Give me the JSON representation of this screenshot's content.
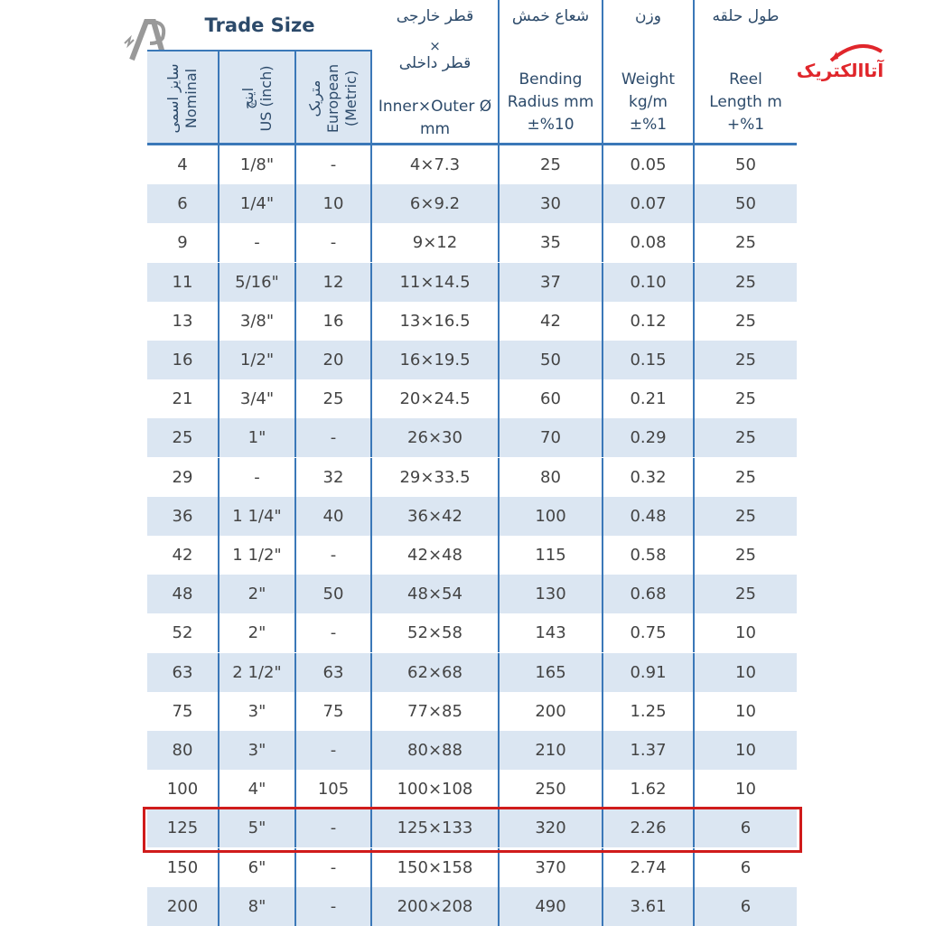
{
  "header": {
    "trade_size": "Trade Size",
    "nominal": {
      "fa": "سایز اسمی",
      "en": "Nominal"
    },
    "us": {
      "fa": "اینچ",
      "en": "US (inch)"
    },
    "european": {
      "fa": "متریک",
      "en": "European",
      "en2": "(Metric)"
    },
    "diameter": {
      "fa1": "قطر خارجی",
      "x": "×",
      "fa2": "قطر داخلی",
      "en": "Inner×Outer Ø",
      "unit": "mm"
    },
    "bending": {
      "fa": "شعاع خمش",
      "en": "Bending",
      "en2": "Radius mm",
      "tol": "±%10"
    },
    "weight": {
      "fa": "وزن",
      "en": "Weight",
      "en2": "kg/m",
      "tol": "±%1"
    },
    "reel": {
      "fa": "طول حلقه",
      "en": "Reel",
      "en2": "Length m",
      "tol": "+%1"
    }
  },
  "logos": {
    "left": "A",
    "right": "آتاالکتریک"
  },
  "highlight_row": "125",
  "rows": [
    [
      "4",
      "1/8\"",
      "-",
      "4×7.3",
      "25",
      "0.05",
      "50"
    ],
    [
      "6",
      "1/4\"",
      "10",
      "6×9.2",
      "30",
      "0.07",
      "50"
    ],
    [
      "9",
      "-",
      "-",
      "9×12",
      "35",
      "0.08",
      "25"
    ],
    [
      "11",
      "5/16\"",
      "12",
      "11×14.5",
      "37",
      "0.10",
      "25"
    ],
    [
      "13",
      "3/8\"",
      "16",
      "13×16.5",
      "42",
      "0.12",
      "25"
    ],
    [
      "16",
      "1/2\"",
      "20",
      "16×19.5",
      "50",
      "0.15",
      "25"
    ],
    [
      "21",
      "3/4\"",
      "25",
      "20×24.5",
      "60",
      "0.21",
      "25"
    ],
    [
      "25",
      "1\"",
      "-",
      "26×30",
      "70",
      "0.29",
      "25"
    ],
    [
      "29",
      "-",
      "32",
      "29×33.5",
      "80",
      "0.32",
      "25"
    ],
    [
      "36",
      "1 1/4\"",
      "40",
      "36×42",
      "100",
      "0.48",
      "25"
    ],
    [
      "42",
      "1 1/2\"",
      "-",
      "42×48",
      "115",
      "0.58",
      "25"
    ],
    [
      "48",
      "2\"",
      "50",
      "48×54",
      "130",
      "0.68",
      "25"
    ],
    [
      "52",
      "2\"",
      "-",
      "52×58",
      "143",
      "0.75",
      "10"
    ],
    [
      "63",
      "2 1/2\"",
      "63",
      "62×68",
      "165",
      "0.91",
      "10"
    ],
    [
      "75",
      "3\"",
      "75",
      "77×85",
      "200",
      "1.25",
      "10"
    ],
    [
      "80",
      "3\"",
      "-",
      "80×88",
      "210",
      "1.37",
      "10"
    ],
    [
      "100",
      "4\"",
      "105",
      "100×108",
      "250",
      "1.62",
      "10"
    ],
    [
      "125",
      "5\"",
      "-",
      "125×133",
      "320",
      "2.26",
      "6"
    ],
    [
      "150",
      "6\"",
      "-",
      "150×158",
      "370",
      "2.74",
      "6"
    ],
    [
      "200",
      "8\"",
      "-",
      "200×208",
      "490",
      "3.61",
      "6"
    ]
  ],
  "colors": {
    "border": "#3b78b8",
    "stripe": "#dbe6f2",
    "highlight": "#d01b1b",
    "header_text": "#2c4a6a"
  }
}
